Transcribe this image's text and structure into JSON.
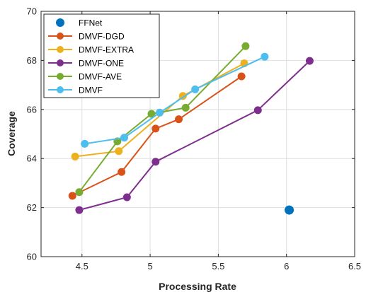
{
  "chart_data": {
    "type": "line",
    "title": "",
    "xlabel": "Processing Rate",
    "ylabel": "Coverage",
    "xlim": [
      4.2,
      6.5
    ],
    "ylim": [
      60,
      70
    ],
    "xticks": [
      "4.5",
      "5",
      "5.5",
      "6",
      "6.5"
    ],
    "yticks": [
      "60",
      "62",
      "64",
      "66",
      "68",
      "70"
    ],
    "grid": true,
    "legend_position": "top-left",
    "series": [
      {
        "name": "FFNet",
        "color": "#0072BD",
        "marker_only": true,
        "points": [
          [
            6.02,
            61.9
          ]
        ]
      },
      {
        "name": "DMVF-DGD",
        "color": "#D95319",
        "points": [
          [
            4.43,
            62.48
          ],
          [
            4.79,
            63.45
          ],
          [
            5.04,
            65.22
          ],
          [
            5.21,
            65.6
          ],
          [
            5.67,
            67.35
          ]
        ]
      },
      {
        "name": "DMVF-EXTRA",
        "color": "#EDB120",
        "points": [
          [
            4.45,
            64.08
          ],
          [
            4.77,
            64.3
          ],
          [
            5.24,
            66.55
          ],
          [
            5.69,
            67.88
          ]
        ]
      },
      {
        "name": "DMVF-ONE",
        "color": "#7E2F8E",
        "points": [
          [
            4.48,
            61.9
          ],
          [
            4.83,
            62.42
          ],
          [
            5.04,
            63.87
          ],
          [
            5.79,
            65.97
          ],
          [
            6.17,
            67.98
          ]
        ]
      },
      {
        "name": "DMVF-AVE",
        "color": "#77AC30",
        "points": [
          [
            4.48,
            62.63
          ],
          [
            4.76,
            64.7
          ],
          [
            5.01,
            65.82
          ],
          [
            5.26,
            66.07
          ],
          [
            5.7,
            68.58
          ]
        ]
      },
      {
        "name": "DMVF",
        "color": "#4DBEEE",
        "points": [
          [
            4.52,
            64.6
          ],
          [
            4.81,
            64.85
          ],
          [
            5.07,
            65.87
          ],
          [
            5.33,
            66.82
          ],
          [
            5.84,
            68.15
          ]
        ]
      }
    ]
  }
}
